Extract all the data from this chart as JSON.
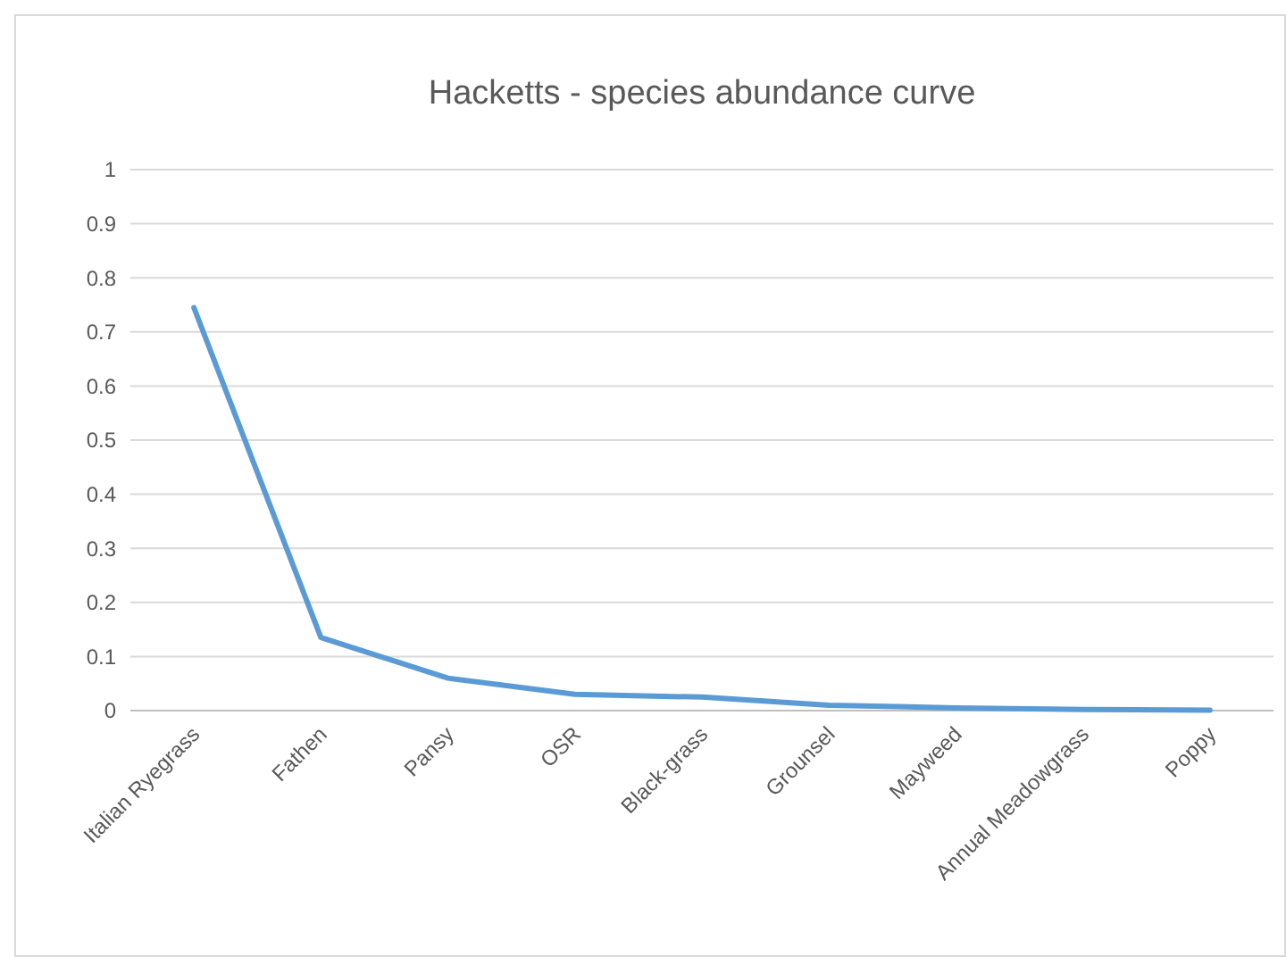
{
  "chart_data": {
    "type": "line",
    "title": "Hacketts - species abundance curve",
    "categories": [
      "Italian Ryegrass",
      "Fathen",
      "Pansy",
      "OSR",
      "Black-grass",
      "Grounsel",
      "Mayweed",
      "Annual Meadowgrass",
      "Poppy"
    ],
    "series": [
      {
        "color": "#5b9bd5",
        "values": [
          0.745,
          0.135,
          0.06,
          0.03,
          0.025,
          0.01,
          0.005,
          0.002,
          0.001
        ]
      }
    ],
    "ylim": [
      0,
      1
    ],
    "yticks": [
      0,
      0.1,
      0.2,
      0.3,
      0.4,
      0.5,
      0.6,
      0.7,
      0.8,
      0.9,
      1
    ],
    "grid": "y",
    "marker": "none",
    "line_style": "solid"
  }
}
